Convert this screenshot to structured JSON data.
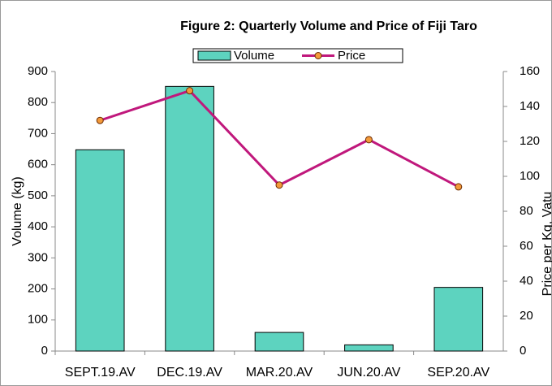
{
  "chart_data": {
    "type": "bar_line",
    "title": "Figure 2: Quarterly Volume and Price of Fiji Taro",
    "categories": [
      "SEPT.19.AV",
      "DEC.19.AV",
      "MAR.20.AV",
      "JUN.20.AV",
      "SEP.20.AV"
    ],
    "series": [
      {
        "name": "Volume",
        "type": "bar",
        "color": "#5dd3bf",
        "values": [
          648,
          852,
          60,
          20,
          205
        ]
      },
      {
        "name": "Price",
        "type": "line",
        "axis": "y2",
        "color": "#c0187c",
        "marker_color": "#f39a3a",
        "values": [
          132,
          149,
          95,
          121,
          94
        ]
      }
    ],
    "ylabel": "Volume (kg)",
    "y2label": "Price per Kg, Vatu",
    "ylim": [
      0,
      900
    ],
    "yticks": [
      0,
      100,
      200,
      300,
      400,
      500,
      600,
      700,
      800,
      900
    ],
    "y2lim": [
      0,
      160
    ],
    "y2ticks": [
      0,
      20,
      40,
      60,
      80,
      100,
      120,
      140,
      160
    ],
    "grid": false,
    "legend": "top"
  }
}
